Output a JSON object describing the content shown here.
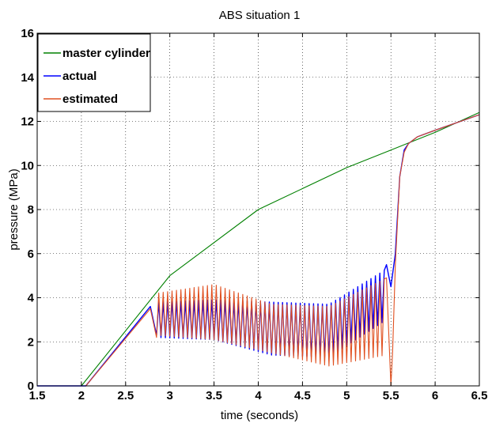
{
  "chart_data": {
    "type": "line",
    "title": "ABS situation 1",
    "xlabel": "time (seconds)",
    "ylabel": "pressure (MPa)",
    "xlim": [
      1.5,
      6.5
    ],
    "ylim": [
      0,
      16
    ],
    "x_ticks": [
      "1.5",
      "2",
      "2.5",
      "3",
      "3.5",
      "4",
      "4.5",
      "5",
      "5.5",
      "6",
      "6.5"
    ],
    "y_ticks": [
      "0",
      "2",
      "4",
      "6",
      "8",
      "10",
      "12",
      "14",
      "16"
    ],
    "grid": true,
    "legend_position": "top-left",
    "series": [
      {
        "name": "master cylinder",
        "color": "#008000",
        "x": [
          1.5,
          2.0,
          3.0,
          4.0,
          5.0,
          5.5,
          6.0,
          6.5
        ],
        "y": [
          0,
          0,
          5.0,
          8.0,
          9.9,
          10.7,
          11.5,
          12.4
        ]
      },
      {
        "name": "actual",
        "color": "#0000ff",
        "x": [
          1.5,
          2.05,
          2.78,
          2.85,
          3.0,
          3.5,
          4.0,
          4.5,
          4.8,
          5.0,
          5.3,
          5.45,
          5.5,
          5.55,
          5.6,
          5.65,
          5.7,
          5.8,
          6.0,
          6.5
        ],
        "y": [
          0,
          0,
          3.6,
          2.3,
          3.7,
          3.9,
          3.9,
          3.8,
          3.6,
          4.2,
          5.1,
          5.5,
          4.5,
          6.0,
          9.5,
          10.7,
          11.0,
          11.3,
          11.6,
          12.3
        ]
      },
      {
        "name": "estimated",
        "color": "#e05020",
        "x": [
          1.5,
          2.05,
          2.78,
          2.85,
          3.0,
          3.3,
          3.5,
          4.0,
          4.5,
          4.8,
          5.0,
          5.3,
          5.45,
          5.5,
          5.52,
          5.55,
          5.6,
          5.65,
          5.7,
          5.8,
          6.0,
          6.5
        ],
        "y": [
          0,
          0,
          3.5,
          2.2,
          4.3,
          4.6,
          4.2,
          3.5,
          3.6,
          3.4,
          3.9,
          4.6,
          4.9,
          0,
          1.6,
          5.5,
          9.5,
          10.6,
          11.0,
          11.3,
          11.6,
          12.3
        ]
      }
    ],
    "oscillation": {
      "actual": {
        "range": [
          2.85,
          5.45
        ],
        "low": [
          2.2,
          2.1,
          1.4,
          1.3,
          3.0
        ],
        "high": [
          3.8,
          3.9,
          3.8,
          3.7,
          5.3
        ]
      },
      "estimated": {
        "range": [
          2.85,
          5.45
        ],
        "low": [
          2.3,
          2.1,
          1.5,
          0.9,
          1.4
        ],
        "high": [
          4.2,
          4.6,
          3.7,
          3.6,
          4.9
        ]
      }
    }
  }
}
